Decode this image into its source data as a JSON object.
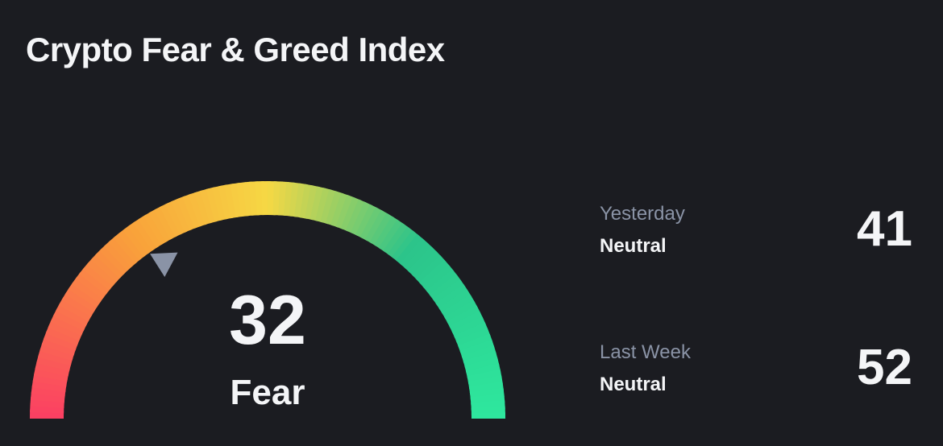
{
  "title": "Crypto Fear & Greed Index",
  "gauge": {
    "value": "32",
    "classification": "Fear",
    "scale_min": 0,
    "scale_max": 100,
    "pointer": "triangle-pointer-icon",
    "colors": [
      "#fb3f63",
      "#f9a23a",
      "#f6d844",
      "#2cc48a",
      "#2ee89e"
    ]
  },
  "history": [
    {
      "period": "Yesterday",
      "classification": "Neutral",
      "value": "41"
    },
    {
      "period": "Last Week",
      "classification": "Neutral",
      "value": "52"
    }
  ],
  "colors": {
    "background": "#1b1c21",
    "text": "#f4f5f7",
    "muted_text": "#8a93a6",
    "pointer": "#8a93a6"
  }
}
